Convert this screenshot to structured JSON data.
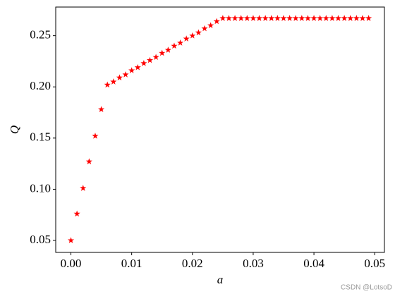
{
  "chart_data": {
    "type": "scatter",
    "x_label": "a",
    "y_label": "Q",
    "watermark": "CSDN @LotsoD",
    "marker": "star",
    "series": [
      {
        "color": "#ff0000",
        "x": [
          0,
          0.001,
          0.002,
          0.003,
          0.004,
          0.005,
          0.006,
          0.007,
          0.008,
          0.009,
          0.01,
          0.011,
          0.012,
          0.013,
          0.014,
          0.015,
          0.016,
          0.017,
          0.018,
          0.019,
          0.02,
          0.021,
          0.022,
          0.023,
          0.024,
          0.025,
          0.026,
          0.027,
          0.028,
          0.029,
          0.03,
          0.031,
          0.032,
          0.033,
          0.034,
          0.035,
          0.036,
          0.037,
          0.038,
          0.039,
          0.04,
          0.041,
          0.042,
          0.043,
          0.044,
          0.045,
          0.046,
          0.047,
          0.048,
          0.049
        ],
        "values": [
          0.05,
          0.076,
          0.101,
          0.127,
          0.152,
          0.178,
          0.202,
          0.205,
          0.209,
          0.212,
          0.216,
          0.219,
          0.223,
          0.226,
          0.229,
          0.233,
          0.236,
          0.24,
          0.243,
          0.247,
          0.25,
          0.253,
          0.257,
          0.26,
          0.264,
          0.267,
          0.267,
          0.267,
          0.267,
          0.267,
          0.267,
          0.267,
          0.267,
          0.267,
          0.267,
          0.267,
          0.267,
          0.267,
          0.267,
          0.267,
          0.267,
          0.267,
          0.267,
          0.267,
          0.267,
          0.267,
          0.267,
          0.267,
          0.267,
          0.267
        ]
      }
    ],
    "xlim": [
      -0.0025,
      0.0516
    ],
    "ylim": [
      0.0383,
      0.278
    ],
    "xticks": [
      {
        "value": 0,
        "label": "0.00"
      },
      0.01,
      0.02,
      0.03,
      0.04,
      0.05
    ],
    "yticks": [
      0.05,
      {
        "value": 0.1,
        "label": "0.10"
      },
      0.15,
      {
        "value": 0.2,
        "label": "0.20"
      },
      0.25
    ],
    "grid": false
  }
}
